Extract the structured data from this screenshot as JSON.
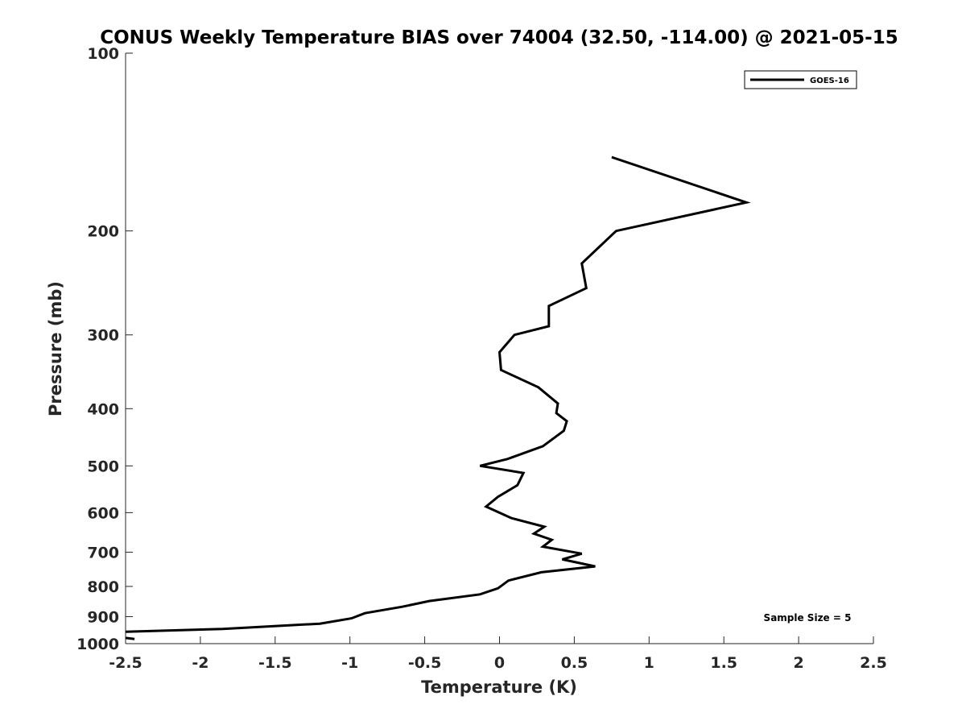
{
  "chart_data": {
    "type": "line",
    "title": "CONUS Weekly Temperature BIAS over 74004 (32.50, -114.00) @ 2021-05-15",
    "xlabel": "Temperature (K)",
    "ylabel": "Pressure (mb)",
    "xlim": [
      -2.5,
      2.5
    ],
    "ylim": [
      100,
      1000
    ],
    "y_scale": "log",
    "y_reversed": true,
    "grid": false,
    "x_ticks": [
      -2.5,
      -2,
      -1.5,
      -1,
      -0.5,
      0,
      0.5,
      1,
      1.5,
      2,
      2.5
    ],
    "x_tick_labels": [
      "-2.5",
      "-2",
      "-1.5",
      "-1",
      "-0.5",
      "0",
      "0.5",
      "1",
      "1.5",
      "2",
      "2.5"
    ],
    "y_ticks": [
      100,
      200,
      300,
      400,
      500,
      600,
      700,
      800,
      900,
      1000
    ],
    "y_tick_labels": [
      "100",
      "200",
      "300",
      "400",
      "500",
      "600",
      "700",
      "800",
      "900",
      "1000"
    ],
    "legend_position": "top-right",
    "series": [
      {
        "name": "GOES-16",
        "color": "#000000",
        "points": [
          {
            "x": 0.75,
            "y": 150
          },
          {
            "x": 1.65,
            "y": 179
          },
          {
            "x": 0.78,
            "y": 200
          },
          {
            "x": 0.55,
            "y": 227
          },
          {
            "x": 0.58,
            "y": 250
          },
          {
            "x": 0.33,
            "y": 268
          },
          {
            "x": 0.33,
            "y": 290
          },
          {
            "x": 0.1,
            "y": 300
          },
          {
            "x": 0.0,
            "y": 321
          },
          {
            "x": 0.01,
            "y": 344
          },
          {
            "x": 0.26,
            "y": 368
          },
          {
            "x": 0.39,
            "y": 392
          },
          {
            "x": 0.38,
            "y": 407
          },
          {
            "x": 0.45,
            "y": 420
          },
          {
            "x": 0.43,
            "y": 436
          },
          {
            "x": 0.29,
            "y": 463
          },
          {
            "x": 0.05,
            "y": 487
          },
          {
            "x": -0.13,
            "y": 500
          },
          {
            "x": 0.16,
            "y": 514
          },
          {
            "x": 0.12,
            "y": 539
          },
          {
            "x": -0.01,
            "y": 564
          },
          {
            "x": -0.09,
            "y": 586
          },
          {
            "x": 0.08,
            "y": 613
          },
          {
            "x": 0.3,
            "y": 634
          },
          {
            "x": 0.23,
            "y": 651
          },
          {
            "x": 0.35,
            "y": 667
          },
          {
            "x": 0.29,
            "y": 685
          },
          {
            "x": 0.55,
            "y": 704
          },
          {
            "x": 0.42,
            "y": 720
          },
          {
            "x": 0.64,
            "y": 740
          },
          {
            "x": 0.28,
            "y": 757
          },
          {
            "x": 0.06,
            "y": 782
          },
          {
            "x": -0.01,
            "y": 806
          },
          {
            "x": -0.13,
            "y": 825
          },
          {
            "x": -0.47,
            "y": 847
          },
          {
            "x": -0.65,
            "y": 866
          },
          {
            "x": -0.9,
            "y": 888
          },
          {
            "x": -0.99,
            "y": 906
          },
          {
            "x": -1.2,
            "y": 925
          },
          {
            "x": -1.85,
            "y": 944
          },
          {
            "x": -2.5,
            "y": 955
          }
        ]
      },
      {
        "name": "",
        "color": "#000000",
        "points": [
          {
            "x": -2.5,
            "y": 978
          },
          {
            "x": -2.44,
            "y": 982
          }
        ]
      }
    ],
    "annotations": [
      "Sample Size = 5"
    ]
  }
}
